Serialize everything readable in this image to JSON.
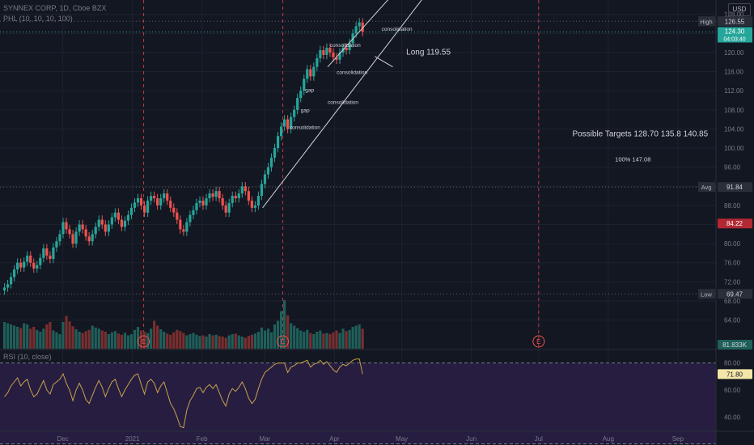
{
  "header": {
    "symbol_line": "SYNNEX CORP, 1D, Cboe BZX",
    "indicator_line": "PHL (10, 10, 10, 100)",
    "currency": "USD",
    "rsi_label": "RSI (10, close)"
  },
  "chart_data": [
    {
      "type": "candlestick",
      "title": "SYNNEX CORP, 1D, Cboe BZX",
      "ylim": [
        58,
        131
      ],
      "y_ticks": [
        64.0,
        68.0,
        72.0,
        76.0,
        80.0,
        84.0,
        88.0,
        92.0,
        96.0,
        100.0,
        104.0,
        108.0,
        112.0,
        116.0,
        120.0,
        124.0,
        128.0
      ],
      "x_tick_labels": [
        "Dec",
        "2021",
        "Feb",
        "Mar",
        "Apr",
        "May",
        "Jun",
        "Jul",
        "Aug",
        "Sep"
      ],
      "x_tick_days": [
        10,
        41,
        72,
        100,
        131,
        161,
        192,
        222,
        253,
        284
      ],
      "x_range_days": [
        -18,
        301
      ],
      "closes": [
        70.8,
        71.5,
        73.0,
        74.6,
        76.0,
        75.0,
        76.2,
        77.5,
        76.0,
        74.8,
        75.5,
        77.0,
        79.0,
        77.5,
        76.8,
        79.2,
        80.5,
        82.0,
        84.5,
        83.0,
        82.0,
        80.0,
        82.5,
        84.0,
        83.0,
        81.5,
        80.5,
        82.0,
        83.5,
        85.0,
        84.0,
        82.5,
        84.0,
        85.5,
        86.5,
        85.0,
        83.5,
        84.8,
        86.0,
        87.5,
        88.6,
        89.5,
        88.0,
        86.5,
        89.0,
        90.0,
        89.5,
        88.0,
        89.5,
        90.5,
        89.0,
        87.5,
        86.5,
        85.0,
        83.0,
        82.5,
        84.5,
        86.0,
        87.0,
        88.5,
        89.0,
        88.0,
        89.5,
        90.5,
        89.8,
        91.0,
        89.5,
        88.0,
        86.5,
        88.5,
        90.0,
        89.5,
        90.5,
        92.0,
        91.0,
        89.0,
        87.5,
        88.0,
        90.0,
        92.5,
        94.5,
        96.0,
        98.0,
        100.0,
        102.5,
        104.5,
        106.0,
        104.0,
        106.5,
        108.0,
        110.5,
        112.0,
        114.5,
        116.5,
        115.0,
        117.0,
        118.8,
        120.5,
        119.5,
        121.0,
        120.0,
        119.0,
        118.5,
        120.0,
        121.0,
        120.5,
        122.0,
        124.0,
        125.5,
        126.3,
        124.3
      ],
      "high": 126.55,
      "low": 69.47,
      "average": 91.84,
      "last_price": 124.3,
      "countdown": "04:03:40",
      "target_price_tag": 84.22,
      "volume_last": "81.833K",
      "volume": [
        44,
        42,
        40,
        38,
        36,
        34,
        42,
        40,
        33,
        36,
        31,
        28,
        33,
        40,
        44,
        30,
        27,
        24,
        44,
        54,
        45,
        37,
        32,
        28,
        26,
        29,
        31,
        38,
        35,
        33,
        30,
        28,
        24,
        27,
        29,
        25,
        23,
        26,
        22,
        24,
        31,
        36,
        30,
        28,
        26,
        33,
        46,
        38,
        32,
        28,
        25,
        23,
        27,
        31,
        29,
        26,
        22,
        24,
        26,
        23,
        21,
        22,
        20,
        24,
        22,
        23,
        21,
        20,
        18,
        22,
        24,
        25,
        22,
        20,
        18,
        21,
        23,
        25,
        28,
        35,
        30,
        33,
        27,
        40,
        46,
        62,
        80,
        55,
        42,
        38,
        34,
        30,
        28,
        31,
        26,
        24,
        28,
        30,
        25,
        26,
        24,
        27,
        30,
        26,
        33,
        29,
        31,
        36,
        38,
        40,
        33
      ],
      "volume_markers": [
        {
          "label": "E",
          "day": 46
        },
        {
          "label": "E",
          "day": 108
        },
        {
          "label": "E",
          "day": 222
        }
      ],
      "annotations": [
        {
          "text": "consolidation",
          "day": 111,
          "price": 104.0
        },
        {
          "text": "gap",
          "day": 116,
          "price": 107.5
        },
        {
          "text": "consolidation",
          "day": 128,
          "price": 109.2
        },
        {
          "text": "gap",
          "day": 118,
          "price": 111.8
        },
        {
          "text": "consolidation",
          "day": 132,
          "price": 115.5
        },
        {
          "text": "consolidation",
          "day": 129,
          "price": 121.2
        },
        {
          "text": "consolidation",
          "day": 152,
          "price": 124.6
        },
        {
          "text": "Long 119.55",
          "day": 163,
          "price": 119.55
        },
        {
          "text": "Possible Targets  128.70   135.8   140.85",
          "day": 237,
          "price": 102.5
        },
        {
          "text": "100% 147.08",
          "day": 256,
          "price": 97.2
        }
      ],
      "channel": {
        "lower": [
          {
            "day": 99,
            "price": 87.5
          },
          {
            "day": 178,
            "price": 136.0
          }
        ],
        "upper": [
          {
            "day": 128,
            "price": 117.0
          },
          {
            "day": 172,
            "price": 140.0
          }
        ],
        "bottom": [
          {
            "day": 149,
            "price": 119.2
          },
          {
            "day": 157,
            "price": 117.0
          }
        ]
      },
      "levels": {
        "high_label": "High",
        "avg_label": "Avg",
        "low_label": "Low"
      }
    },
    {
      "type": "line",
      "title": "RSI (10, close)",
      "ylim": [
        30,
        90
      ],
      "y_ticks": [
        40.0,
        60.0,
        80.0
      ],
      "bands": [
        80,
        20
      ],
      "last_value": 71.8,
      "values": [
        55,
        58,
        63,
        66,
        69,
        63,
        66,
        68,
        60,
        55,
        57,
        62,
        67,
        60,
        57,
        64,
        66,
        68,
        72,
        65,
        60,
        52,
        60,
        65,
        60,
        53,
        50,
        56,
        62,
        67,
        62,
        55,
        61,
        66,
        68,
        61,
        55,
        60,
        64,
        68,
        71,
        72,
        64,
        57,
        66,
        68,
        65,
        58,
        63,
        66,
        58,
        50,
        46,
        40,
        33,
        32,
        45,
        52,
        56,
        61,
        62,
        58,
        62,
        64,
        61,
        64,
        58,
        52,
        48,
        57,
        61,
        59,
        62,
        66,
        61,
        54,
        50,
        53,
        61,
        68,
        73,
        75,
        77,
        79,
        80,
        80,
        80,
        73,
        77,
        78,
        80,
        80,
        81,
        82,
        77,
        79,
        80,
        82,
        79,
        81,
        78,
        75,
        73,
        77,
        79,
        78,
        80,
        82,
        83,
        83,
        71.8
      ]
    }
  ]
}
